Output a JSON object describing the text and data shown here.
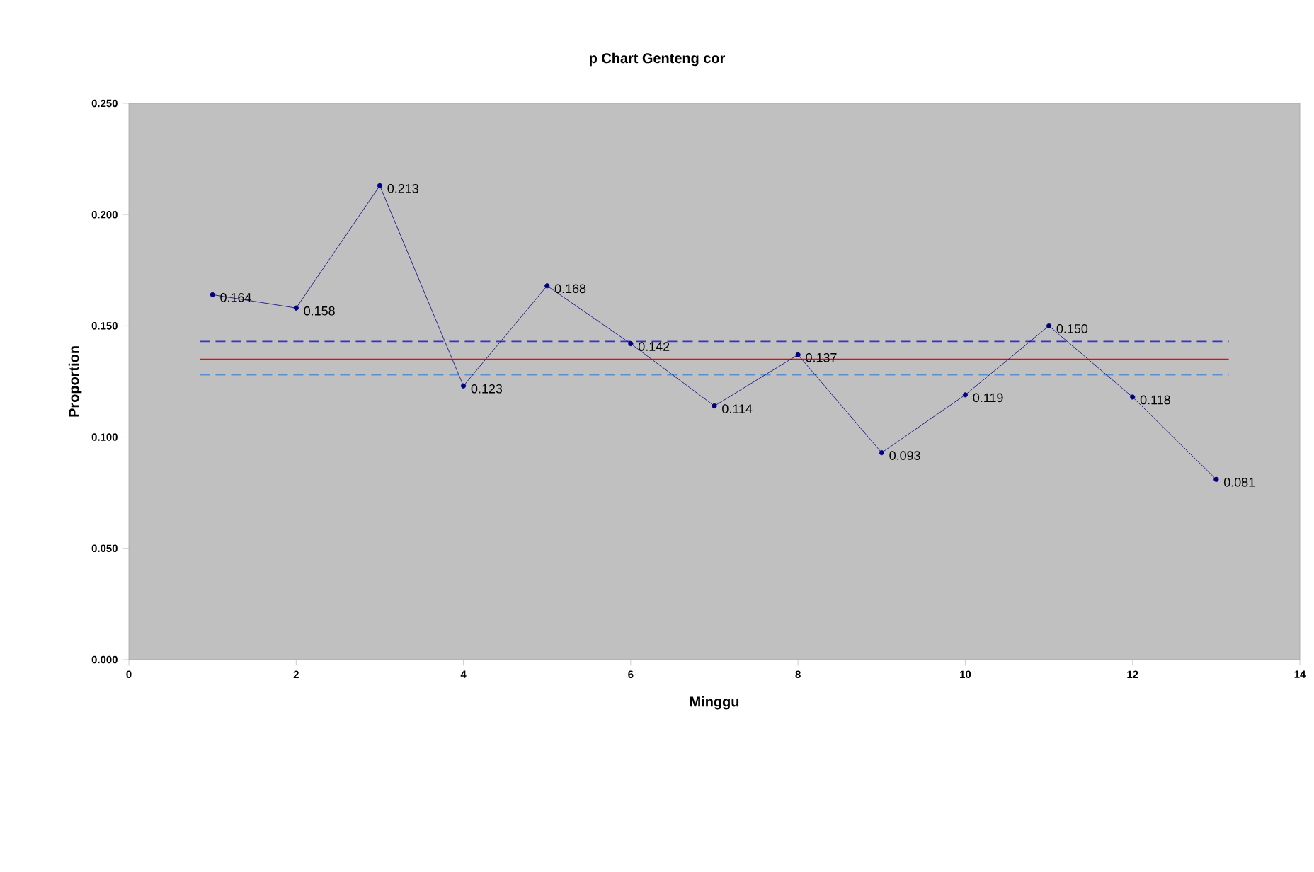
{
  "chart_data": {
    "type": "line",
    "title": "p Chart Genteng cor",
    "xlabel": "Minggu",
    "ylabel": "Proportion",
    "x": [
      1,
      2,
      3,
      4,
      5,
      6,
      7,
      8,
      9,
      10,
      11,
      12,
      13
    ],
    "series": [
      {
        "color": "#000080",
        "values": [
          0.164,
          0.158,
          0.213,
          0.123,
          0.168,
          0.142,
          0.114,
          0.137,
          0.093,
          0.119,
          0.15,
          0.118,
          0.081
        ],
        "value_labels": [
          "0.164",
          "0.158",
          "0.213",
          "0.123",
          "0.168",
          "0.142",
          "0.114",
          "0.137",
          "0.093",
          "0.119",
          "0.150",
          "0.118",
          "0.081"
        ]
      }
    ],
    "marker": "circle",
    "grid": false,
    "xlim": [
      0,
      14
    ],
    "xticks": [
      0,
      2,
      4,
      6,
      8,
      10,
      12,
      14
    ],
    "ylim": [
      0,
      0.25
    ],
    "yticks": [
      {
        "value": 0,
        "label": "0.000"
      },
      {
        "value": 0.05,
        "label": "0.050"
      },
      {
        "value": 0.1,
        "label": "0.100"
      },
      {
        "value": 0.15,
        "label": "0.150"
      },
      {
        "value": 0.2,
        "label": "0.200"
      },
      {
        "value": 0.25,
        "label": "0.250"
      }
    ],
    "ref_lines": [
      {
        "axis": "y",
        "value": 0.143,
        "color": "#3333cc",
        "line_style": "dashed"
      },
      {
        "axis": "y",
        "value": 0.135,
        "color": "#ff0000",
        "line_style": "solid"
      },
      {
        "axis": "y",
        "value": 0.128,
        "color": "#5b8fd0",
        "line_style": "dashed"
      }
    ]
  }
}
